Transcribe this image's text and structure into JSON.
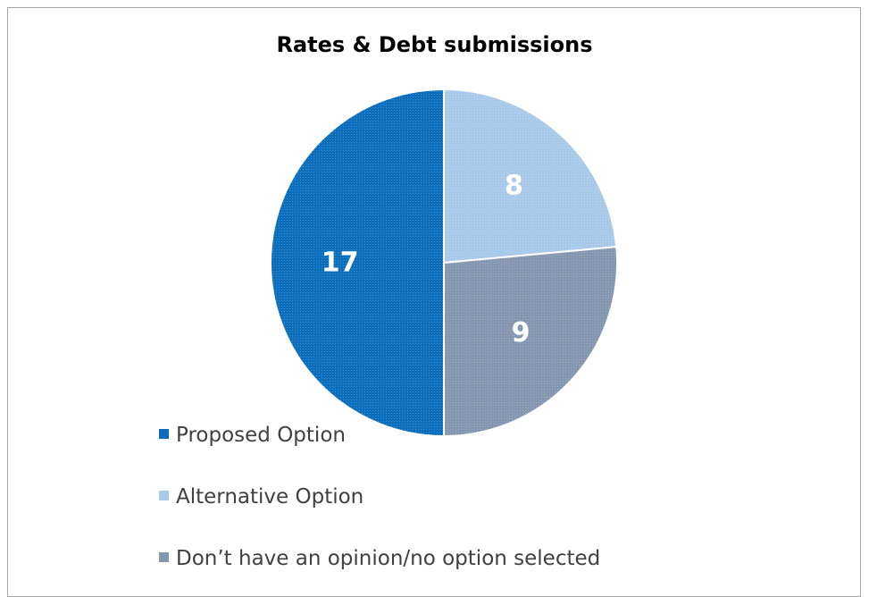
{
  "chart_data": {
    "type": "pie",
    "title": "Rates & Debt submissions",
    "categories": [
      "Proposed Option",
      "Alternative Option",
      "Don’t have an opinion/no option selected"
    ],
    "values": [
      17,
      8,
      9
    ],
    "colors": [
      "#0a6ebd",
      "#a9c9e8",
      "#8496b0"
    ],
    "data_labels": [
      "17",
      "8",
      "9"
    ],
    "legend_position": "bottom-left"
  }
}
